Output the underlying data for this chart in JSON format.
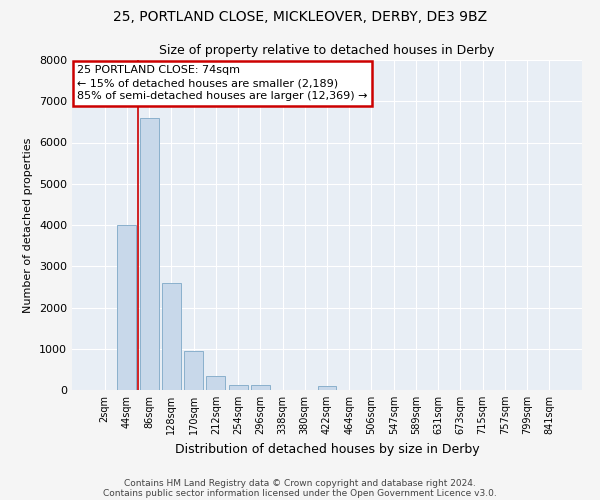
{
  "title1": "25, PORTLAND CLOSE, MICKLEOVER, DERBY, DE3 9BZ",
  "title2": "Size of property relative to detached houses in Derby",
  "xlabel": "Distribution of detached houses by size in Derby",
  "ylabel": "Number of detached properties",
  "categories": [
    "2sqm",
    "44sqm",
    "86sqm",
    "128sqm",
    "170sqm",
    "212sqm",
    "254sqm",
    "296sqm",
    "338sqm",
    "380sqm",
    "422sqm",
    "464sqm",
    "506sqm",
    "547sqm",
    "589sqm",
    "631sqm",
    "673sqm",
    "715sqm",
    "757sqm",
    "799sqm",
    "841sqm"
  ],
  "values": [
    0,
    4000,
    6600,
    2600,
    950,
    330,
    120,
    120,
    0,
    0,
    100,
    0,
    0,
    0,
    0,
    0,
    0,
    0,
    0,
    0,
    0
  ],
  "bar_color": "#c8d8ea",
  "bar_edge_color": "#8ab0cc",
  "ylim": [
    0,
    8000
  ],
  "yticks": [
    0,
    1000,
    2000,
    3000,
    4000,
    5000,
    6000,
    7000,
    8000
  ],
  "property_line_x": 1.5,
  "property_line_color": "#cc0000",
  "annotation_text": "25 PORTLAND CLOSE: 74sqm\n← 15% of detached houses are smaller (2,189)\n85% of semi-detached houses are larger (12,369) →",
  "annotation_box_color": "#cc0000",
  "footer1": "Contains HM Land Registry data © Crown copyright and database right 2024.",
  "footer2": "Contains public sector information licensed under the Open Government Licence v3.0.",
  "plot_bg_color": "#e8eef5",
  "fig_bg_color": "#f5f5f5",
  "grid_color": "#ffffff"
}
